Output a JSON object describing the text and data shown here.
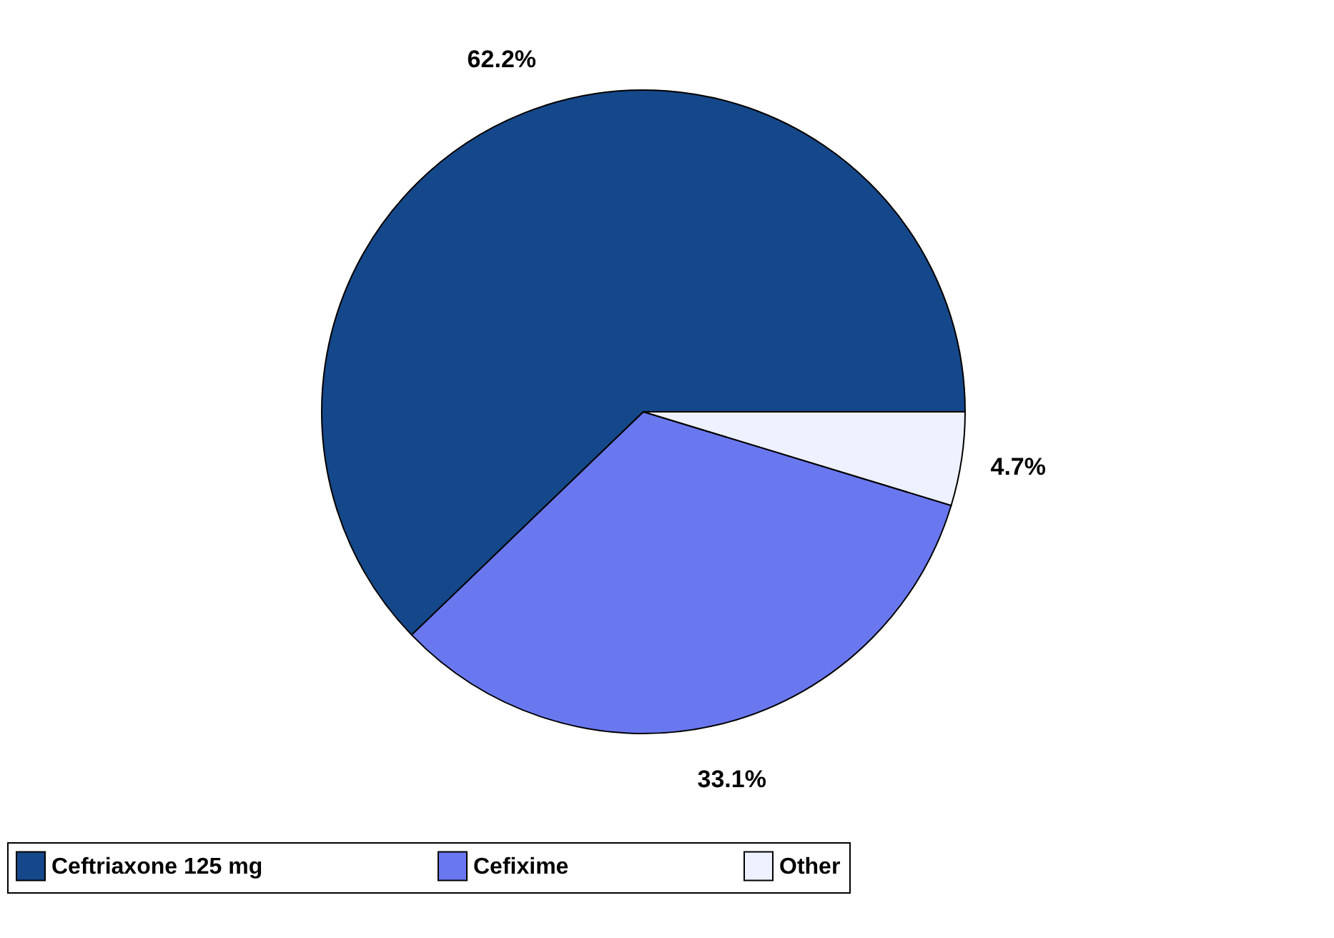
{
  "chart_data": {
    "type": "pie",
    "categories": [
      "Ceftriaxone 125 mg",
      "Cefixime",
      "Other"
    ],
    "values": [
      62.2,
      33.1,
      4.7
    ],
    "colors": [
      "#15488a",
      "#6a78f0",
      "#eef1ff"
    ],
    "value_labels": [
      "62.2%",
      "33.1%",
      "4.7%"
    ],
    "legend": "bottom"
  }
}
